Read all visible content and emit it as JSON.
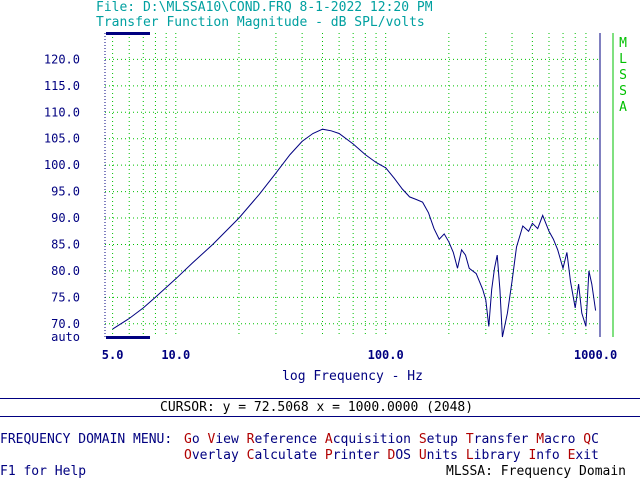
{
  "header": {
    "file_line": "File: D:\\MLSSA10\\COND.FRQ 8-1-2022 12:20 PM",
    "subtitle": "Transfer Function Magnitude - dB SPL/volts"
  },
  "side_label": [
    "M",
    "L",
    "S",
    "S",
    "A"
  ],
  "colors": {
    "teal": "#00a0a0",
    "navy": "#000080",
    "green": "#00c000",
    "red": "#b00000",
    "grid": "#00c000",
    "curve": "#000080"
  },
  "chart_data": {
    "type": "line",
    "title": "Transfer Function Magnitude - dB SPL/volts",
    "xlabel": "log Frequency - Hz",
    "ylabel": "",
    "x_scale": "log",
    "xlim": [
      4.6,
      1050
    ],
    "ylim": [
      67.5,
      125
    ],
    "x_tick_labels": [
      {
        "v": 5,
        "label": "5.0"
      },
      {
        "v": 10,
        "label": "10.0"
      },
      {
        "v": 100,
        "label": "100.0"
      },
      {
        "v": 1000,
        "label": "1000.0"
      }
    ],
    "y_tick_labels": [
      {
        "v": 120,
        "label": "120.0"
      },
      {
        "v": 115,
        "label": "115.0"
      },
      {
        "v": 110,
        "label": "110.0"
      },
      {
        "v": 105,
        "label": "105.0"
      },
      {
        "v": 100,
        "label": "100.0"
      },
      {
        "v": 95,
        "label": "95.0"
      },
      {
        "v": 90,
        "label": "90.0"
      },
      {
        "v": 85,
        "label": "85.0"
      },
      {
        "v": 80,
        "label": "80.0"
      },
      {
        "v": 75,
        "label": "75.0"
      },
      {
        "v": 70,
        "label": "70.0"
      },
      {
        "v": 67.5,
        "label": "auto"
      }
    ],
    "series": [
      {
        "x": [
          5,
          6,
          7,
          8,
          10,
          12,
          15,
          20,
          25,
          30,
          35,
          40,
          45,
          50,
          55,
          60,
          70,
          80,
          90,
          100,
          110,
          120,
          130,
          140,
          150,
          160,
          170,
          180,
          190,
          200,
          210,
          220,
          230,
          240,
          250,
          270,
          290,
          300,
          310,
          320,
          330,
          340,
          350,
          360,
          380,
          400,
          420,
          450,
          480,
          500,
          530,
          560,
          600,
          630,
          660,
          700,
          730,
          760,
          800,
          830,
          860,
          900,
          930,
          960,
          1000
        ],
        "y": [
          69,
          71,
          73,
          75,
          78.5,
          81.5,
          85,
          90,
          94.5,
          98.5,
          102,
          104.5,
          106,
          106.8,
          106.5,
          106,
          104,
          102,
          100.5,
          99.5,
          97.5,
          95.5,
          94,
          93.5,
          93,
          91,
          88,
          86,
          87,
          85.5,
          83.5,
          80.5,
          84,
          83,
          80.5,
          79.5,
          76.5,
          74.5,
          69.5,
          76.5,
          80.5,
          83,
          76.5,
          67.5,
          72,
          78,
          84.5,
          88.5,
          87.5,
          89,
          88,
          90.5,
          87.5,
          86,
          84,
          80.5,
          83.5,
          78,
          73,
          77.5,
          72,
          69.5,
          80,
          77.5,
          72.5
        ]
      }
    ]
  },
  "cursor_line": "CURSOR: y = 72.5068 x = 1000.0000 (2048)",
  "menu": {
    "title": "FREQUENCY DOMAIN MENU:",
    "row1": [
      {
        "hot": "G",
        "rest": "o"
      },
      {
        "hot": "V",
        "rest": "iew"
      },
      {
        "hot": "R",
        "rest": "eference"
      },
      {
        "hot": "A",
        "rest": "cquisition"
      },
      {
        "hot": "S",
        "rest": "etup"
      },
      {
        "hot": "T",
        "rest": "ransfer"
      },
      {
        "hot": "M",
        "rest": "acro"
      },
      {
        "hot": "Q",
        "rest": "C"
      }
    ],
    "row2": [
      {
        "hot": "O",
        "rest": "verlay"
      },
      {
        "hot": "C",
        "rest": "alculate"
      },
      {
        "hot": "P",
        "rest": "rinter"
      },
      {
        "hot": "D",
        "rest": "OS"
      },
      {
        "hot": "U",
        "rest": "nits"
      },
      {
        "hot": "L",
        "rest": "ibrary"
      },
      {
        "hot": "I",
        "rest": "nfo"
      },
      {
        "hot": "E",
        "rest": "xit"
      }
    ]
  },
  "footer": {
    "help": "F1 for Help",
    "mode": "MLSSA: Frequency Domain"
  }
}
